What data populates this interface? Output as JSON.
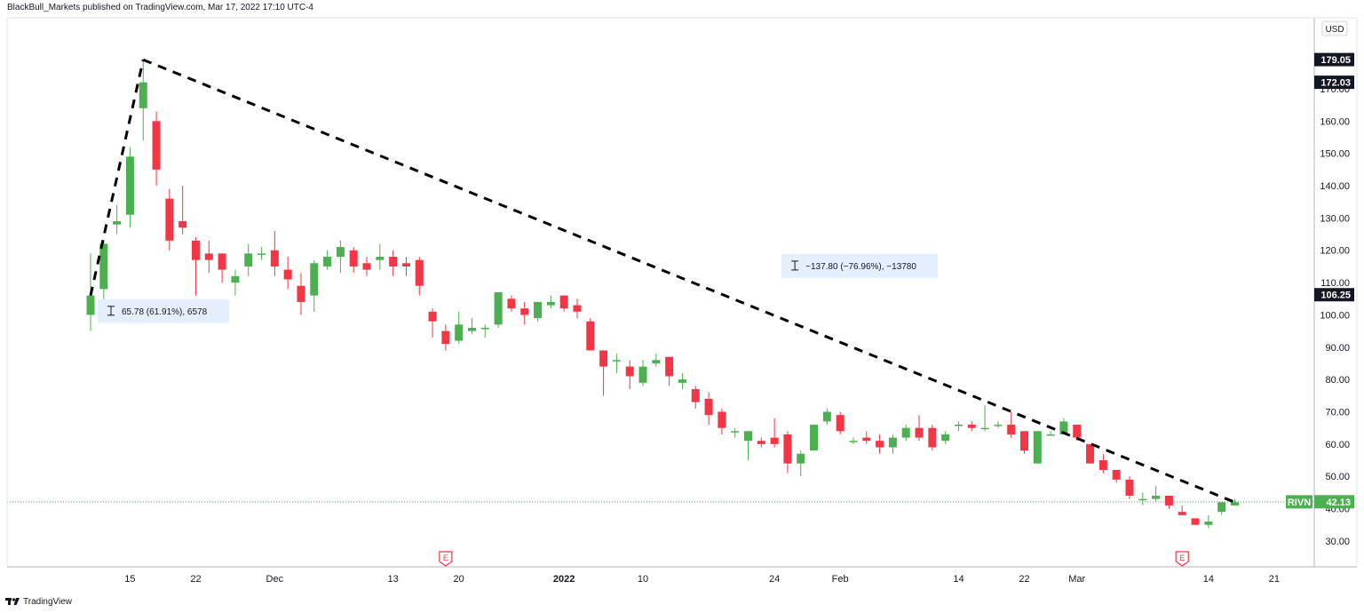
{
  "header": {
    "published_text": "BlackBull_Markets published on TradingView.com, Mar 17, 2022 17:10 UTC-4"
  },
  "footer": {
    "brand": "TradingView",
    "logo_icon": "tradingview-logo-icon"
  },
  "colors": {
    "up": "#4caf50",
    "down": "#f23645",
    "trendline": "#000000",
    "measure_bg": "#e3effd",
    "grid_line": "#f0f3fa",
    "last_price_line": "#4caf50",
    "axis_tag_dark": "#131722"
  },
  "chart_data": {
    "type": "candlestick",
    "symbol": "RIVN",
    "currency": "USD",
    "y_axis_unit": "USD",
    "y_range": [
      22,
      192
    ],
    "y_ticks": [
      "30.00",
      "40.00",
      "50.00",
      "60.00",
      "70.00",
      "80.00",
      "90.00",
      "100.00",
      "110.00",
      "120.00",
      "130.00",
      "140.00",
      "150.00",
      "160.00",
      "170.00"
    ],
    "x_ticks": [
      {
        "label": "15",
        "i": 3
      },
      {
        "label": "22",
        "i": 8
      },
      {
        "label": "Dec",
        "i": 14
      },
      {
        "label": "13",
        "i": 23
      },
      {
        "label": "20",
        "i": 28
      },
      {
        "label": "2022",
        "i": 36,
        "bold": true
      },
      {
        "label": "10",
        "i": 42
      },
      {
        "label": "24",
        "i": 52
      },
      {
        "label": "Feb",
        "i": 57
      },
      {
        "label": "14",
        "i": 66
      },
      {
        "label": "22",
        "i": 71
      },
      {
        "label": "Mar",
        "i": 75
      },
      {
        "label": "14",
        "i": 85
      },
      {
        "label": "21",
        "i": 90
      }
    ],
    "candles": [
      {
        "o": 100,
        "h": 119,
        "l": 95,
        "c": 106
      },
      {
        "o": 108,
        "h": 123,
        "l": 102,
        "c": 122
      },
      {
        "o": 128,
        "h": 134,
        "l": 125,
        "c": 129
      },
      {
        "o": 131,
        "h": 152,
        "l": 127,
        "c": 149
      },
      {
        "o": 164,
        "h": 179,
        "l": 154,
        "c": 172
      },
      {
        "o": 160,
        "h": 163,
        "l": 140,
        "c": 145
      },
      {
        "o": 136,
        "h": 139,
        "l": 120,
        "c": 123
      },
      {
        "o": 129,
        "h": 140,
        "l": 125,
        "c": 127
      },
      {
        "o": 123,
        "h": 124,
        "l": 106,
        "c": 117
      },
      {
        "o": 119,
        "h": 123,
        "l": 113,
        "c": 117
      },
      {
        "o": 119,
        "h": 119,
        "l": 110,
        "c": 114
      },
      {
        "o": 110,
        "h": 114,
        "l": 106,
        "c": 112
      },
      {
        "o": 115,
        "h": 122,
        "l": 112,
        "c": 119
      },
      {
        "o": 119,
        "h": 121,
        "l": 117,
        "c": 119
      },
      {
        "o": 120,
        "h": 126,
        "l": 112,
        "c": 115
      },
      {
        "o": 114,
        "h": 118,
        "l": 108,
        "c": 111
      },
      {
        "o": 109,
        "h": 113,
        "l": 100,
        "c": 104
      },
      {
        "o": 106,
        "h": 117,
        "l": 101,
        "c": 116
      },
      {
        "o": 115,
        "h": 120,
        "l": 114,
        "c": 118
      },
      {
        "o": 118,
        "h": 123,
        "l": 113,
        "c": 121
      },
      {
        "o": 120,
        "h": 121,
        "l": 113,
        "c": 115
      },
      {
        "o": 116,
        "h": 118,
        "l": 112,
        "c": 114
      },
      {
        "o": 117,
        "h": 122,
        "l": 114,
        "c": 118
      },
      {
        "o": 118,
        "h": 120,
        "l": 112,
        "c": 115
      },
      {
        "o": 116,
        "h": 118,
        "l": 112,
        "c": 115
      },
      {
        "o": 117,
        "h": 118,
        "l": 106,
        "c": 109
      },
      {
        "o": 101,
        "h": 102,
        "l": 93,
        "c": 98
      },
      {
        "o": 95,
        "h": 97,
        "l": 89,
        "c": 91
      },
      {
        "o": 92,
        "h": 101,
        "l": 91,
        "c": 97
      },
      {
        "o": 95,
        "h": 99,
        "l": 94,
        "c": 96
      },
      {
        "o": 96,
        "h": 97,
        "l": 93,
        "c": 96
      },
      {
        "o": 97,
        "h": 107,
        "l": 96,
        "c": 107
      },
      {
        "o": 105,
        "h": 106,
        "l": 101,
        "c": 102
      },
      {
        "o": 102,
        "h": 104,
        "l": 97,
        "c": 100
      },
      {
        "o": 99,
        "h": 104,
        "l": 98,
        "c": 104
      },
      {
        "o": 103,
        "h": 106,
        "l": 102,
        "c": 104
      },
      {
        "o": 106,
        "h": 106,
        "l": 101,
        "c": 102
      },
      {
        "o": 103,
        "h": 105,
        "l": 99,
        "c": 101
      },
      {
        "o": 98,
        "h": 99,
        "l": 89,
        "c": 89
      },
      {
        "o": 89,
        "h": 89,
        "l": 75,
        "c": 84
      },
      {
        "o": 86,
        "h": 88,
        "l": 82,
        "c": 86
      },
      {
        "o": 84,
        "h": 86,
        "l": 77,
        "c": 81
      },
      {
        "o": 79,
        "h": 86,
        "l": 78,
        "c": 84
      },
      {
        "o": 85,
        "h": 88,
        "l": 84,
        "c": 86
      },
      {
        "o": 87,
        "h": 87,
        "l": 78,
        "c": 81
      },
      {
        "o": 79,
        "h": 82,
        "l": 77,
        "c": 80
      },
      {
        "o": 77,
        "h": 78,
        "l": 71,
        "c": 73
      },
      {
        "o": 74,
        "h": 76,
        "l": 66,
        "c": 69
      },
      {
        "o": 70,
        "h": 71,
        "l": 63,
        "c": 65
      },
      {
        "o": 64,
        "h": 65,
        "l": 62,
        "c": 64
      },
      {
        "o": 61,
        "h": 64,
        "l": 55,
        "c": 64
      },
      {
        "o": 61,
        "h": 62,
        "l": 59,
        "c": 60
      },
      {
        "o": 62,
        "h": 68,
        "l": 59,
        "c": 60
      },
      {
        "o": 63,
        "h": 64,
        "l": 51,
        "c": 54
      },
      {
        "o": 54,
        "h": 58,
        "l": 50,
        "c": 57
      },
      {
        "o": 58,
        "h": 66,
        "l": 58,
        "c": 66
      },
      {
        "o": 67,
        "h": 71,
        "l": 66,
        "c": 70
      },
      {
        "o": 69,
        "h": 70,
        "l": 63,
        "c": 64
      },
      {
        "o": 61,
        "h": 62,
        "l": 60,
        "c": 61
      },
      {
        "o": 62,
        "h": 64,
        "l": 60,
        "c": 61
      },
      {
        "o": 61,
        "h": 63,
        "l": 57,
        "c": 59
      },
      {
        "o": 59,
        "h": 63,
        "l": 57,
        "c": 62
      },
      {
        "o": 62,
        "h": 66,
        "l": 61,
        "c": 65
      },
      {
        "o": 65,
        "h": 69,
        "l": 61,
        "c": 62
      },
      {
        "o": 65,
        "h": 66,
        "l": 58,
        "c": 59
      },
      {
        "o": 61,
        "h": 64,
        "l": 60,
        "c": 63
      },
      {
        "o": 66,
        "h": 67,
        "l": 64,
        "c": 66
      },
      {
        "o": 66,
        "h": 67,
        "l": 64,
        "c": 65
      },
      {
        "o": 65,
        "h": 72,
        "l": 64,
        "c": 65
      },
      {
        "o": 66,
        "h": 67,
        "l": 65,
        "c": 66
      },
      {
        "o": 66,
        "h": 70,
        "l": 62,
        "c": 63
      },
      {
        "o": 64,
        "h": 64,
        "l": 57,
        "c": 58
      },
      {
        "o": 54,
        "h": 64,
        "l": 54,
        "c": 64
      },
      {
        "o": 63,
        "h": 64,
        "l": 63,
        "c": 63
      },
      {
        "o": 63,
        "h": 68,
        "l": 63,
        "c": 67
      },
      {
        "o": 66,
        "h": 66,
        "l": 61,
        "c": 62
      },
      {
        "o": 60,
        "h": 60,
        "l": 54,
        "c": 54
      },
      {
        "o": 55,
        "h": 57,
        "l": 51,
        "c": 52
      },
      {
        "o": 52,
        "h": 52,
        "l": 48,
        "c": 49
      },
      {
        "o": 49,
        "h": 50,
        "l": 43,
        "c": 44
      },
      {
        "o": 43,
        "h": 45,
        "l": 41,
        "c": 43
      },
      {
        "o": 43,
        "h": 47,
        "l": 42,
        "c": 44
      },
      {
        "o": 44,
        "h": 44,
        "l": 40,
        "c": 41
      },
      {
        "o": 39,
        "h": 41,
        "l": 38,
        "c": 38
      },
      {
        "o": 37,
        "h": 37,
        "l": 35,
        "c": 35
      },
      {
        "o": 35,
        "h": 38,
        "l": 34,
        "c": 36
      },
      {
        "o": 39,
        "h": 42,
        "l": 38,
        "c": 42
      },
      {
        "o": 41,
        "h": 43,
        "l": 41,
        "c": 42
      }
    ],
    "trendlines": [
      {
        "from": {
          "i": 0,
          "v": 106
        },
        "to": {
          "i": 4,
          "v": 179
        }
      },
      {
        "from": {
          "i": 4,
          "v": 179
        },
        "to": {
          "i": 87,
          "v": 42
        }
      }
    ],
    "measurements": [
      {
        "text": "65.78 (61.91%), 6578",
        "anchor_i": 0,
        "v": 101
      },
      {
        "text": "−137.80 (−76.96%), −13780",
        "anchor_i": 52,
        "v": 115
      }
    ],
    "earnings_markers": [
      {
        "label": "E",
        "i": 27
      },
      {
        "label": "E",
        "i": 83
      }
    ],
    "axis_tags": [
      {
        "label": "179.05",
        "v": 179.05
      },
      {
        "label": "172.03",
        "v": 172.03
      },
      {
        "label": "106.25",
        "v": 106.25
      }
    ],
    "last_price": {
      "symbol": "RIVN",
      "label": "42.13",
      "v": 42.13
    }
  }
}
